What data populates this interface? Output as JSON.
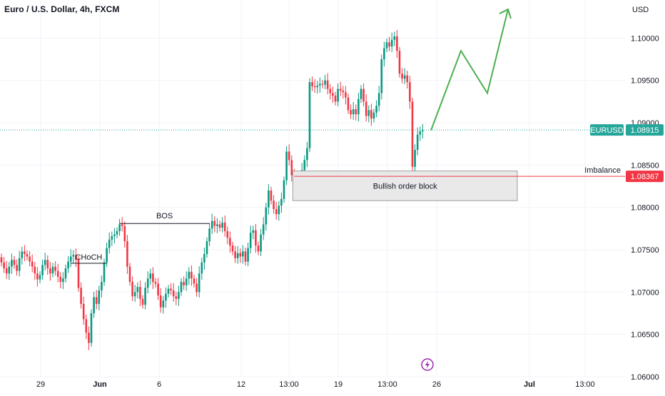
{
  "header": {
    "title": "Euro / U.S. Dollar, 4h, FXCM"
  },
  "chart_data": {
    "type": "candlestick",
    "symbol": "EURUSD",
    "timeframe": "4h",
    "source": "FXCM",
    "currency_label": "USD",
    "ylim": [
      1.06,
      1.1045
    ],
    "y_ticks": [
      "1.10000",
      "1.09500",
      "1.09000",
      "1.08500",
      "1.08000",
      "1.07500",
      "1.07000",
      "1.06500",
      "1.06000"
    ],
    "x_ticks": [
      "29",
      "Jun",
      "6",
      "12",
      "13:00",
      "19",
      "13:00",
      "26",
      "Jul",
      "13:00"
    ],
    "last_price": {
      "label": "EURUSD",
      "value": "1.08915"
    },
    "imbalance": {
      "label": "Imbalance",
      "value": "1.08367"
    },
    "order_block": {
      "label": "Bullish order block",
      "top": 1.0843,
      "bottom": 1.0808
    },
    "annotations": [
      {
        "label": "CHoCH",
        "price": 1.0734
      },
      {
        "label": "BOS",
        "price": 1.0781
      }
    ],
    "projection": [
      1.0891,
      1.0985,
      1.0935,
      1.1034
    ],
    "colors": {
      "up": "#089981",
      "down": "#f23645",
      "projection": "#4caf50",
      "last_price_line": "#26a69a",
      "imbalance_line": "#f23645"
    },
    "closes": [
      1.0735,
      1.0728,
      1.0722,
      1.073,
      1.0738,
      1.0732,
      1.0725,
      1.074,
      1.0748,
      1.0745,
      1.0742,
      1.0736,
      1.073,
      1.0722,
      1.0715,
      1.072,
      1.0732,
      1.0738,
      1.0728,
      1.0722,
      1.073,
      1.0725,
      1.0718,
      1.0712,
      1.0716,
      1.0728,
      1.0736,
      1.0742,
      1.0744,
      1.0738,
      1.0705,
      1.0686,
      1.0668,
      1.0652,
      1.064,
      1.0675,
      1.0694,
      1.0686,
      1.0702,
      1.0712,
      1.0735,
      1.0752,
      1.0762,
      1.0766,
      1.0768,
      1.0772,
      1.078,
      1.0778,
      1.076,
      1.073,
      1.0712,
      1.0695,
      1.07,
      1.0706,
      1.0692,
      1.0685,
      1.0705,
      1.0716,
      1.0722,
      1.0712,
      1.071,
      1.0696,
      1.0682,
      1.069,
      1.0698,
      1.0704,
      1.0702,
      1.0695,
      1.0692,
      1.07,
      1.0712,
      1.0708,
      1.0716,
      1.0724,
      1.0716,
      1.071,
      1.07,
      1.0722,
      1.0735,
      1.0745,
      1.076,
      1.0775,
      1.0784,
      1.0778,
      1.078,
      1.0776,
      1.0782,
      1.0772,
      1.0764,
      1.0755,
      1.0748,
      1.074,
      1.0746,
      1.0742,
      1.0748,
      1.0736,
      1.0752,
      1.077,
      1.0773,
      1.0755,
      1.0748,
      1.0768,
      1.078,
      1.08,
      1.082,
      1.0808,
      1.0798,
      1.0792,
      1.0802,
      1.081,
      1.0832,
      1.0866,
      1.0856,
      1.0838,
      1.0822,
      1.082,
      1.0822,
      1.0844,
      1.0856,
      1.087,
      1.0948,
      1.0943,
      1.0942,
      1.0944,
      1.0946,
      1.0945,
      1.095,
      1.094,
      1.0935,
      1.0932,
      1.0925,
      1.094,
      1.0938,
      1.0936,
      1.093,
      1.0915,
      1.091,
      1.0916,
      1.091,
      1.0928,
      1.094,
      1.0925,
      1.0908,
      1.0915,
      1.0905,
      1.0912,
      1.092,
      1.0935,
      1.0975,
      1.0988,
      1.0995,
      1.099,
      1.0998,
      1.1002,
      1.0985,
      1.0958,
      1.0952,
      1.0956,
      1.0948,
      1.0925,
      1.0848,
      1.0868,
      1.0886,
      1.089,
      1.0891
    ]
  }
}
